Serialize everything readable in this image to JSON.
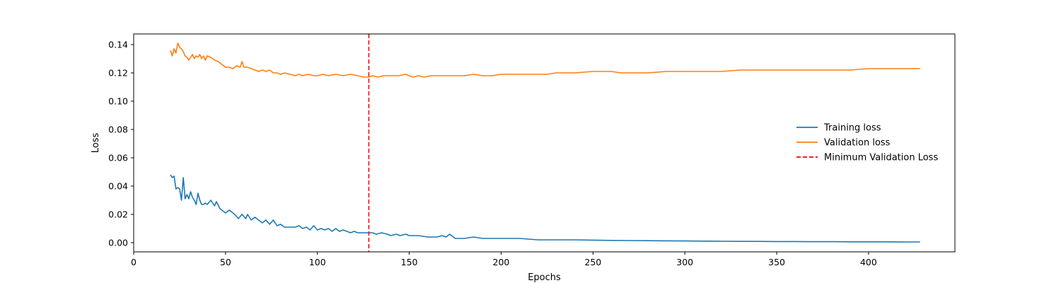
{
  "chart_data": {
    "type": "line",
    "title": "",
    "xlabel": "Epochs",
    "ylabel": "Loss",
    "xlim": [
      0,
      447
    ],
    "ylim": [
      -0.0065,
      0.1475
    ],
    "xticks": [
      0,
      50,
      100,
      150,
      200,
      250,
      300,
      350,
      400
    ],
    "yticks": [
      0.0,
      0.02,
      0.04,
      0.06,
      0.08,
      0.1,
      0.12,
      0.14
    ],
    "xtick_labels": [
      "0",
      "50",
      "100",
      "150",
      "200",
      "250",
      "300",
      "350",
      "400"
    ],
    "ytick_labels": [
      "0.00",
      "0.02",
      "0.04",
      "0.06",
      "0.08",
      "0.10",
      "0.12",
      "0.14"
    ],
    "grid": false,
    "legend_position": "center-right",
    "series": [
      {
        "name": "Training loss",
        "color": "#1f77b4",
        "points": [
          [
            20,
            0.048
          ],
          [
            21,
            0.046
          ],
          [
            22,
            0.047
          ],
          [
            23,
            0.038
          ],
          [
            24,
            0.039
          ],
          [
            25,
            0.038
          ],
          [
            26,
            0.03
          ],
          [
            27,
            0.046
          ],
          [
            28,
            0.031
          ],
          [
            29,
            0.034
          ],
          [
            30,
            0.031
          ],
          [
            31,
            0.036
          ],
          [
            32,
            0.032
          ],
          [
            33,
            0.03
          ],
          [
            34,
            0.027
          ],
          [
            35,
            0.035
          ],
          [
            36,
            0.03
          ],
          [
            37,
            0.027
          ],
          [
            38,
            0.027
          ],
          [
            39,
            0.028
          ],
          [
            40,
            0.027
          ],
          [
            42,
            0.03
          ],
          [
            44,
            0.026
          ],
          [
            45,
            0.029
          ],
          [
            47,
            0.024
          ],
          [
            50,
            0.021
          ],
          [
            52,
            0.023
          ],
          [
            55,
            0.02
          ],
          [
            57,
            0.017
          ],
          [
            59,
            0.02
          ],
          [
            61,
            0.017
          ],
          [
            62,
            0.02
          ],
          [
            64,
            0.016
          ],
          [
            66,
            0.018
          ],
          [
            68,
            0.016
          ],
          [
            70,
            0.014
          ],
          [
            72,
            0.016
          ],
          [
            74,
            0.013
          ],
          [
            76,
            0.016
          ],
          [
            78,
            0.012
          ],
          [
            80,
            0.013
          ],
          [
            82,
            0.011
          ],
          [
            85,
            0.011
          ],
          [
            88,
            0.011
          ],
          [
            90,
            0.012
          ],
          [
            92,
            0.01
          ],
          [
            94,
            0.011
          ],
          [
            96,
            0.009
          ],
          [
            98,
            0.012
          ],
          [
            100,
            0.009
          ],
          [
            102,
            0.01
          ],
          [
            104,
            0.009
          ],
          [
            106,
            0.01
          ],
          [
            108,
            0.008
          ],
          [
            110,
            0.01
          ],
          [
            112,
            0.008
          ],
          [
            114,
            0.009
          ],
          [
            116,
            0.008
          ],
          [
            118,
            0.007
          ],
          [
            120,
            0.008
          ],
          [
            122,
            0.007
          ],
          [
            125,
            0.007
          ],
          [
            128,
            0.007
          ],
          [
            130,
            0.007
          ],
          [
            132,
            0.006
          ],
          [
            135,
            0.007
          ],
          [
            138,
            0.006
          ],
          [
            140,
            0.005
          ],
          [
            143,
            0.006
          ],
          [
            145,
            0.005
          ],
          [
            148,
            0.006
          ],
          [
            150,
            0.005
          ],
          [
            155,
            0.005
          ],
          [
            160,
            0.004
          ],
          [
            165,
            0.004
          ],
          [
            168,
            0.005
          ],
          [
            170,
            0.004
          ],
          [
            172,
            0.006
          ],
          [
            175,
            0.003
          ],
          [
            180,
            0.003
          ],
          [
            185,
            0.004
          ],
          [
            190,
            0.003
          ],
          [
            195,
            0.003
          ],
          [
            200,
            0.003
          ],
          [
            210,
            0.003
          ],
          [
            220,
            0.002
          ],
          [
            230,
            0.002
          ],
          [
            240,
            0.002
          ],
          [
            250,
            0.0018
          ],
          [
            260,
            0.0016
          ],
          [
            270,
            0.0015
          ],
          [
            280,
            0.0014
          ],
          [
            290,
            0.0013
          ],
          [
            300,
            0.0012
          ],
          [
            310,
            0.0011
          ],
          [
            320,
            0.001
          ],
          [
            330,
            0.0009
          ],
          [
            340,
            0.0009
          ],
          [
            350,
            0.0008
          ],
          [
            360,
            0.0008
          ],
          [
            370,
            0.0007
          ],
          [
            380,
            0.0007
          ],
          [
            390,
            0.0006
          ],
          [
            400,
            0.0006
          ],
          [
            410,
            0.0006
          ],
          [
            420,
            0.0005
          ],
          [
            428,
            0.0005
          ]
        ]
      },
      {
        "name": "Validation loss",
        "color": "#ff7f0e",
        "points": [
          [
            20,
            0.136
          ],
          [
            21,
            0.132
          ],
          [
            22,
            0.137
          ],
          [
            23,
            0.134
          ],
          [
            24,
            0.141
          ],
          [
            25,
            0.138
          ],
          [
            26,
            0.137
          ],
          [
            27,
            0.135
          ],
          [
            28,
            0.132
          ],
          [
            29,
            0.131
          ],
          [
            30,
            0.129
          ],
          [
            31,
            0.131
          ],
          [
            32,
            0.133
          ],
          [
            33,
            0.13
          ],
          [
            34,
            0.132
          ],
          [
            35,
            0.131
          ],
          [
            36,
            0.133
          ],
          [
            37,
            0.13
          ],
          [
            38,
            0.132
          ],
          [
            39,
            0.129
          ],
          [
            40,
            0.132
          ],
          [
            42,
            0.131
          ],
          [
            44,
            0.129
          ],
          [
            46,
            0.128
          ],
          [
            48,
            0.126
          ],
          [
            50,
            0.124
          ],
          [
            52,
            0.124
          ],
          [
            54,
            0.123
          ],
          [
            56,
            0.125
          ],
          [
            58,
            0.124
          ],
          [
            59,
            0.128
          ],
          [
            60,
            0.124
          ],
          [
            62,
            0.124
          ],
          [
            64,
            0.123
          ],
          [
            66,
            0.122
          ],
          [
            68,
            0.121
          ],
          [
            70,
            0.122
          ],
          [
            72,
            0.121
          ],
          [
            74,
            0.122
          ],
          [
            76,
            0.12
          ],
          [
            78,
            0.12
          ],
          [
            80,
            0.119
          ],
          [
            82,
            0.12
          ],
          [
            85,
            0.119
          ],
          [
            88,
            0.118
          ],
          [
            90,
            0.119
          ],
          [
            92,
            0.118
          ],
          [
            95,
            0.119
          ],
          [
            98,
            0.118
          ],
          [
            100,
            0.118
          ],
          [
            103,
            0.119
          ],
          [
            106,
            0.118
          ],
          [
            110,
            0.119
          ],
          [
            114,
            0.118
          ],
          [
            118,
            0.119
          ],
          [
            122,
            0.118
          ],
          [
            125,
            0.117
          ],
          [
            128,
            0.117
          ],
          [
            130,
            0.118
          ],
          [
            133,
            0.117
          ],
          [
            136,
            0.118
          ],
          [
            140,
            0.118
          ],
          [
            144,
            0.118
          ],
          [
            148,
            0.119
          ],
          [
            152,
            0.117
          ],
          [
            155,
            0.118
          ],
          [
            158,
            0.117
          ],
          [
            162,
            0.118
          ],
          [
            165,
            0.118
          ],
          [
            170,
            0.118
          ],
          [
            175,
            0.118
          ],
          [
            180,
            0.118
          ],
          [
            185,
            0.119
          ],
          [
            190,
            0.118
          ],
          [
            195,
            0.118
          ],
          [
            200,
            0.119
          ],
          [
            205,
            0.119
          ],
          [
            210,
            0.119
          ],
          [
            215,
            0.119
          ],
          [
            220,
            0.119
          ],
          [
            225,
            0.119
          ],
          [
            230,
            0.12
          ],
          [
            240,
            0.12
          ],
          [
            250,
            0.121
          ],
          [
            260,
            0.121
          ],
          [
            265,
            0.12
          ],
          [
            270,
            0.12
          ],
          [
            280,
            0.12
          ],
          [
            290,
            0.121
          ],
          [
            300,
            0.121
          ],
          [
            310,
            0.121
          ],
          [
            320,
            0.121
          ],
          [
            330,
            0.122
          ],
          [
            340,
            0.122
          ],
          [
            350,
            0.122
          ],
          [
            360,
            0.122
          ],
          [
            370,
            0.122
          ],
          [
            380,
            0.122
          ],
          [
            390,
            0.122
          ],
          [
            400,
            0.123
          ],
          [
            410,
            0.123
          ],
          [
            420,
            0.123
          ],
          [
            428,
            0.123
          ]
        ]
      }
    ],
    "vlines": [
      {
        "name": "Minimum Validation Loss",
        "x": 128,
        "color": "#ff0000",
        "style": "dashed"
      }
    ]
  }
}
